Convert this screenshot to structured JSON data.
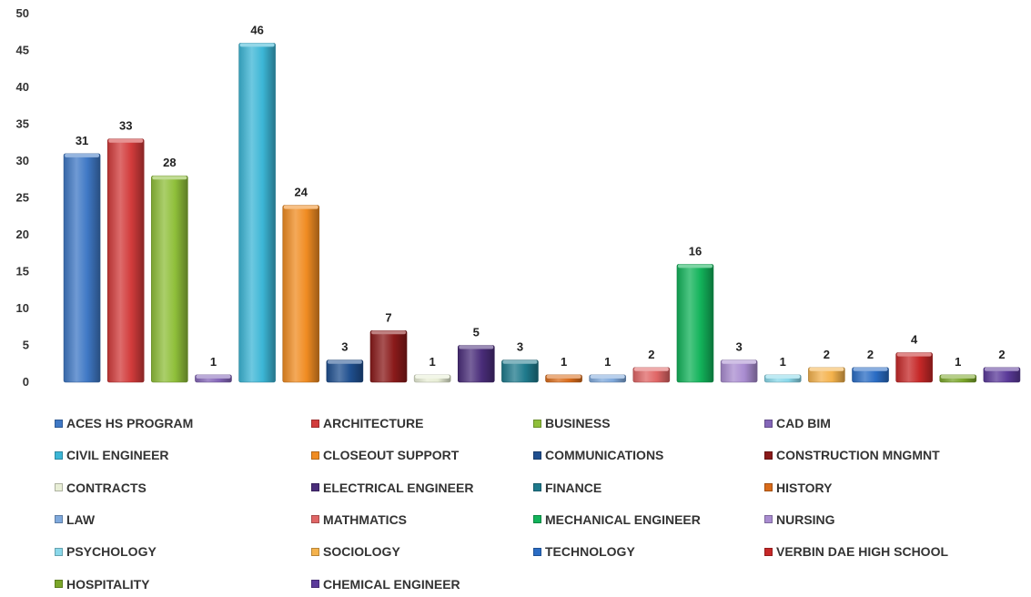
{
  "chart_data": {
    "type": "bar",
    "title": "",
    "xlabel": "",
    "ylabel": "",
    "ylim": [
      0,
      50
    ],
    "yticks": [
      "0",
      "5",
      "10",
      "15",
      "20",
      "25",
      "30",
      "35",
      "40",
      "45",
      "50"
    ],
    "grid": false,
    "legend_position": "bottom",
    "categories": [
      "ACES HS PROGRAM",
      "ARCHITECTURE",
      "BUSINESS",
      "CAD BIM",
      "CIVIL ENGINEER",
      "CLOSEOUT SUPPORT",
      "COMMUNICATIONS",
      "CONSTRUCTION MNGMNT",
      "CONTRACTS",
      "ELECTRICAL ENGINEER",
      "FINANCE",
      "HISTORY",
      "LAW",
      "MATHMATICS",
      "MECHANICAL ENGINEER",
      "NURSING",
      "PSYCHOLOGY",
      "SOCIOLOGY",
      "TECHNOLOGY",
      "VERBIN DAE HIGH SCHOOL",
      "HOSPITALITY",
      "CHEMICAL ENGINEER"
    ],
    "values": [
      31,
      33,
      28,
      1,
      46,
      24,
      3,
      7,
      1,
      5,
      3,
      1,
      1,
      2,
      16,
      3,
      1,
      2,
      2,
      4,
      1,
      2
    ],
    "colors": [
      "#3f78c5",
      "#d23b3b",
      "#8fbf3a",
      "#8466b8",
      "#3cb6d6",
      "#f08c22",
      "#1f4f8f",
      "#8a1a1a",
      "#e8eed6",
      "#4a2d7a",
      "#1f7a8c",
      "#d96b1a",
      "#7fa9dc",
      "#e06666",
      "#12b35a",
      "#a98cd0",
      "#8ad8ea",
      "#f4b24c",
      "#2a6cc4",
      "#c62828",
      "#7aa629",
      "#5b3a9a"
    ]
  }
}
